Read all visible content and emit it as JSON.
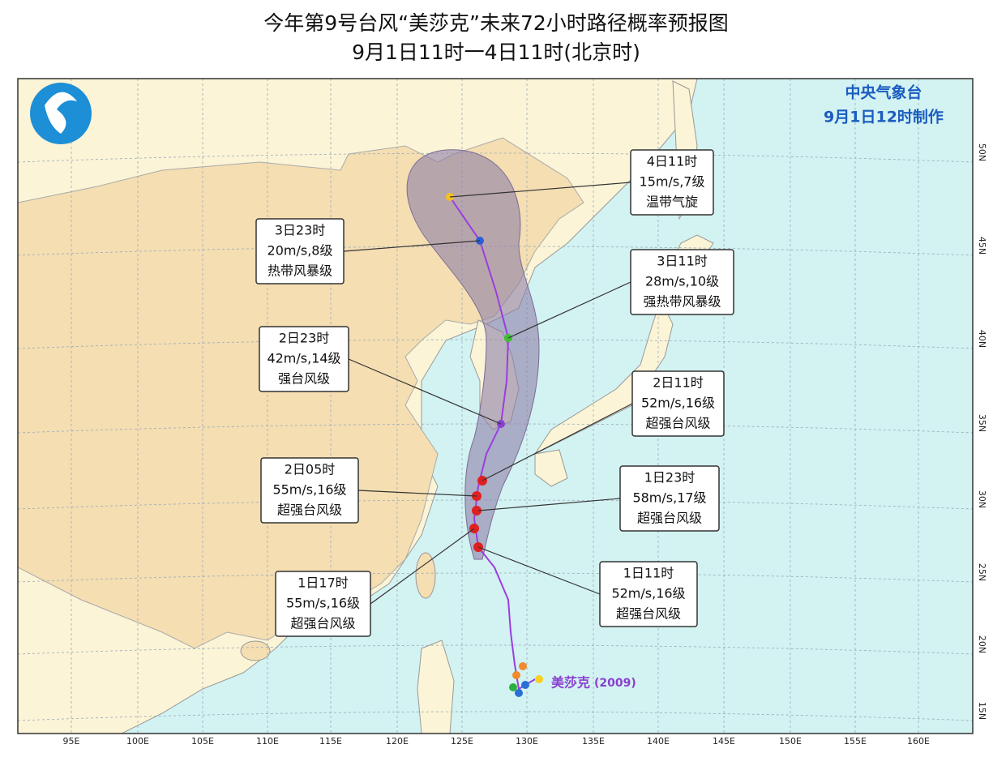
{
  "header": {
    "title": "今年第9号台风“美莎克”未来72小时路径概率预报图",
    "subtitle": "9月1日11时一4日11时(北京时)"
  },
  "agency": {
    "name": "中央气象台",
    "issued": "9月1日12时制作"
  },
  "forecast_labels": [
    {
      "time": "1日11时",
      "wind": "52m/s,16级",
      "level": "超强台风级"
    },
    {
      "time": "1日17时",
      "wind": "55m/s,16级",
      "level": "超强台风级"
    },
    {
      "time": "1日23时",
      "wind": "58m/s,17级",
      "level": "超强台风级"
    },
    {
      "time": "2日05时",
      "wind": "55m/s,16级",
      "level": "超强台风级"
    },
    {
      "time": "2日11时",
      "wind": "52m/s,16级",
      "level": "超强台风级"
    },
    {
      "time": "2日23时",
      "wind": "42m/s,14级",
      "level": "强台风级"
    },
    {
      "time": "3日11时",
      "wind": "28m/s,10级",
      "level": "强热带风暴级"
    },
    {
      "time": "3日23时",
      "wind": "20m/s,8级",
      "level": "热带风暴级"
    },
    {
      "time": "4日11时",
      "wind": "15m/s,7级",
      "level": "温带气旋"
    }
  ],
  "typhoon_name": "美莎克",
  "typhoon_code": "(2009)",
  "longitude_labels": [
    "95E",
    "100E",
    "105E",
    "110E",
    "115E",
    "120E",
    "125E",
    "130E",
    "135E",
    "140E",
    "145E",
    "150E",
    "155E",
    "160E"
  ],
  "latitude_labels": [
    "50N",
    "45N",
    "40N",
    "35N",
    "30N",
    "25N",
    "20N",
    "15N"
  ]
}
